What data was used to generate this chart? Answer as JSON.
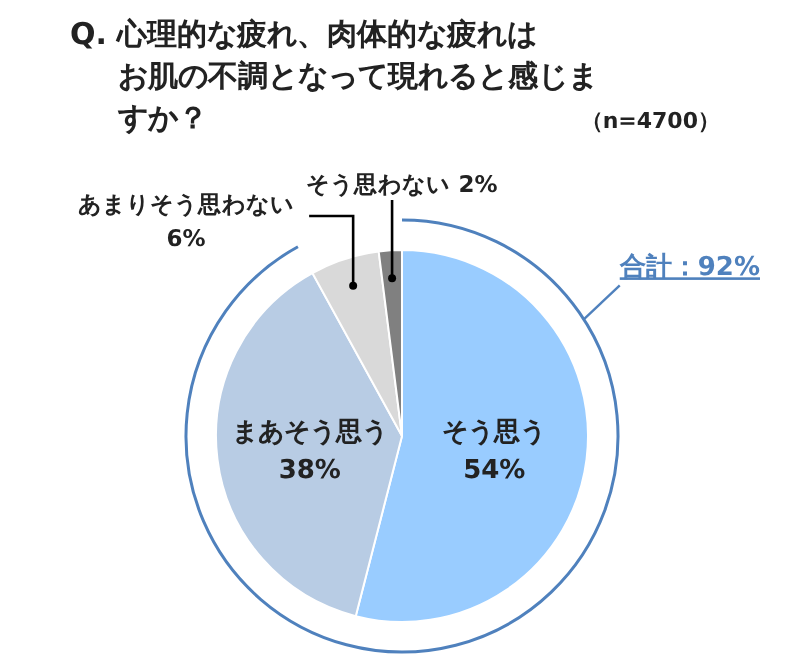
{
  "chart_data": {
    "type": "pie",
    "title": "Q. 心理的な疲れ、肉体的な疲れはお肌の不調となって現れると感じますか？",
    "subtitle": "（n=4700）",
    "categories": [
      "そう思う",
      "まあそう思う",
      "あまりそう思わない",
      "そう思わない"
    ],
    "values": [
      54,
      38,
      6,
      2
    ],
    "value_labels": [
      "54%",
      "38%",
      "6%",
      "2%"
    ],
    "colors": [
      "#99ccff",
      "#b8cce4",
      "#d9d9d9",
      "#808080"
    ],
    "annotations": [
      "合計：92%"
    ]
  }
}
